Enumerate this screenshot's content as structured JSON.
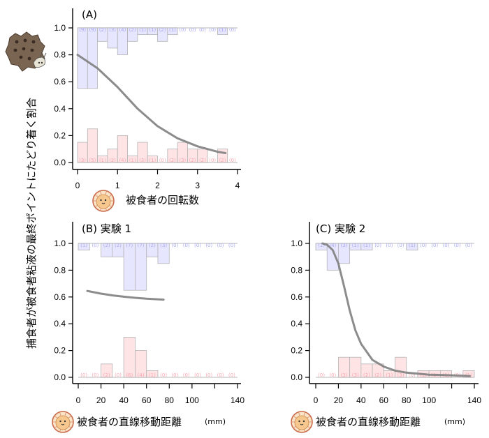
{
  "figure": {
    "ylabel": "捕食者が被食者粘液の最終ポイントにたどり着く割合",
    "colors": {
      "success_bar": "#e6e6ff",
      "success_text": "#a8a8f0",
      "fail_bar": "#ffe4e6",
      "fail_text": "#f5a8b0",
      "bar_edge": "#b4b4b4",
      "curve": "#808080"
    },
    "icons": {
      "predator": "snail-predator-icon",
      "prey": "prey-creature-icon"
    }
  },
  "chart_data": [
    {
      "id": "A",
      "type": "bar",
      "title": "(A)",
      "xlabel": "被食者の回転数",
      "unit": "",
      "ylabel": "捕食者が被食者粘液の最終ポイントにたどり着く割合",
      "xlim": [
        0,
        4
      ],
      "ylim": [
        0,
        1
      ],
      "xticks": [
        "0",
        "1",
        "2",
        "3",
        "4"
      ],
      "xtick_values": [
        0,
        1,
        2,
        3,
        4
      ],
      "yticks": [
        "0.0",
        "0.2",
        "0.4",
        "0.6",
        "0.8",
        "1.0"
      ],
      "bin_width": 0.25,
      "bin_starts": [
        0,
        0.25,
        0.5,
        0.75,
        1.0,
        1.25,
        1.5,
        1.75,
        2.0,
        2.25,
        2.5,
        2.75,
        3.0,
        3.25,
        3.5,
        3.75
      ],
      "success_counts": [
        9,
        9,
        2,
        3,
        4,
        2,
        1,
        1,
        2,
        1,
        0,
        0,
        0,
        0,
        1,
        0
      ],
      "success_bar_tops": [
        0.55,
        0.55,
        0.9,
        0.85,
        0.8,
        0.9,
        0.95,
        0.95,
        0.9,
        0.95,
        1.0,
        1.0,
        1.0,
        1.0,
        0.95,
        1.0
      ],
      "fail_counts": [
        3,
        5,
        1,
        2,
        4,
        1,
        3,
        1,
        0,
        2,
        3,
        2,
        2,
        0,
        2,
        0
      ],
      "fail_bar_tops": [
        0.15,
        0.25,
        0.05,
        0.1,
        0.2,
        0.05,
        0.15,
        0.05,
        0.0,
        0.1,
        0.15,
        0.1,
        0.1,
        0.0,
        0.1,
        0.0
      ],
      "curve": {
        "x": [
          0,
          0.5,
          1.0,
          1.5,
          2.0,
          2.5,
          3.0,
          3.5,
          3.7
        ],
        "y": [
          0.8,
          0.7,
          0.56,
          0.4,
          0.27,
          0.18,
          0.12,
          0.08,
          0.07
        ]
      }
    },
    {
      "id": "B",
      "type": "bar",
      "title": "(B) 実験 1",
      "xlabel": "被食者の直線移動距離",
      "unit": "(mm)",
      "xlim": [
        0,
        140
      ],
      "ylim": [
        0,
        1
      ],
      "xticks": [
        "0",
        "20",
        "40",
        "60",
        "80",
        "100",
        "",
        "140"
      ],
      "xtick_values": [
        0,
        20,
        40,
        60,
        80,
        100,
        120,
        140
      ],
      "yticks": [
        "0.0",
        "0.2",
        "0.4",
        "0.6",
        "0.8",
        "1.0"
      ],
      "bin_width": 10,
      "bin_starts": [
        0,
        10,
        20,
        30,
        40,
        50,
        60,
        70,
        80,
        90,
        100,
        110,
        120,
        130
      ],
      "success_counts": [
        1,
        0,
        2,
        2,
        7,
        7,
        2,
        3,
        0,
        0,
        0,
        0,
        0,
        0
      ],
      "success_bar_tops": [
        0.95,
        1.0,
        0.9,
        0.9,
        0.65,
        0.65,
        0.9,
        0.85,
        1.0,
        1.0,
        1.0,
        1.0,
        1.0,
        1.0
      ],
      "fail_counts": [
        0,
        0,
        2,
        0,
        6,
        4,
        1,
        0,
        0,
        0,
        0,
        0,
        0,
        0
      ],
      "fail_bar_tops": [
        0.0,
        0.0,
        0.1,
        0.0,
        0.3,
        0.2,
        0.05,
        0.0,
        0.0,
        0.0,
        0.0,
        0.0,
        0.0,
        0.0
      ],
      "curve": {
        "x": [
          8,
          20,
          30,
          40,
          50,
          60,
          75
        ],
        "y": [
          0.645,
          0.625,
          0.612,
          0.602,
          0.594,
          0.587,
          0.58
        ]
      }
    },
    {
      "id": "C",
      "type": "bar",
      "title": "(C) 実験 2",
      "xlabel": "被食者の直線移動距離",
      "unit": "(mm)",
      "xlim": [
        0,
        140
      ],
      "ylim": [
        0,
        1
      ],
      "xticks": [
        "0",
        "20",
        "40",
        "60",
        "80",
        "100",
        "",
        "140"
      ],
      "xtick_values": [
        0,
        20,
        40,
        60,
        80,
        100,
        120,
        140
      ],
      "yticks": [
        "0.0",
        "0.2",
        "0.4",
        "0.6",
        "0.8",
        "1.0"
      ],
      "bin_width": 10,
      "bin_starts": [
        0,
        10,
        20,
        30,
        40,
        50,
        60,
        70,
        80,
        90,
        100,
        110,
        120,
        130
      ],
      "success_counts": [
        1,
        4,
        3,
        1,
        1,
        0,
        0,
        0,
        1,
        0,
        0,
        0,
        0,
        0
      ],
      "success_bar_tops": [
        0.95,
        0.8,
        0.85,
        0.95,
        0.95,
        1.0,
        1.0,
        1.0,
        0.95,
        1.0,
        1.0,
        1.0,
        1.0,
        1.0
      ],
      "fail_counts": [
        0,
        0,
        3,
        3,
        2,
        2,
        1,
        3,
        0,
        1,
        1,
        1,
        0,
        1
      ],
      "fail_bar_tops": [
        0.0,
        0.0,
        0.15,
        0.15,
        0.1,
        0.1,
        0.05,
        0.15,
        0.0,
        0.05,
        0.05,
        0.05,
        0.0,
        0.05
      ],
      "curve": {
        "x": [
          6,
          10,
          15,
          20,
          25,
          30,
          35,
          40,
          50,
          60,
          70,
          80,
          100,
          120,
          136
        ],
        "y": [
          1.0,
          0.99,
          0.95,
          0.85,
          0.68,
          0.5,
          0.35,
          0.25,
          0.13,
          0.08,
          0.05,
          0.035,
          0.02,
          0.015,
          0.01
        ]
      }
    }
  ]
}
